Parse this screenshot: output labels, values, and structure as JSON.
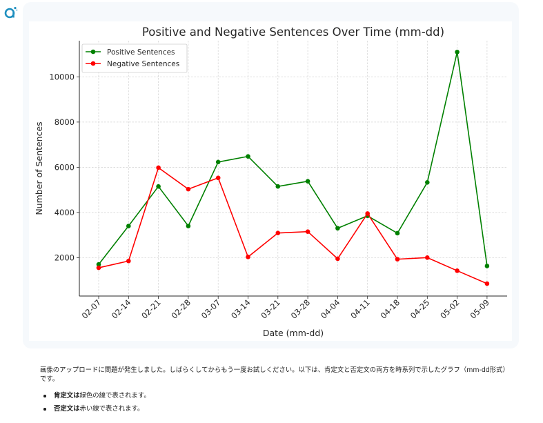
{
  "assistant": {
    "avatar_icon": "assistant-logo-icon",
    "brand_color": "#1e8fbf"
  },
  "message": {
    "paragraph": "画像のアップロードに問題が発生しました。しばらくしてからもう一度お試しください。以下は、肯定文と否定文の両方を時系列で示したグラフ（mm-dd形式）です。",
    "bullets": [
      {
        "strong": "肯定文は",
        "rest": "緑色の線で表されます。"
      },
      {
        "strong": "否定文は",
        "rest": "赤い線で表されます。"
      }
    ]
  },
  "chart_data": {
    "type": "line",
    "title": "Positive and Negative Sentences Over Time (mm-dd)",
    "xlabel": "Date (mm-dd)",
    "ylabel": "Number of Sentences",
    "categories": [
      "02-07",
      "02-14",
      "02-21",
      "02-28",
      "03-07",
      "03-14",
      "03-21",
      "03-28",
      "04-04",
      "04-11",
      "04-18",
      "04-25",
      "05-02",
      "05-09"
    ],
    "yticks": [
      2000,
      4000,
      6000,
      8000,
      10000
    ],
    "ylim": [
      300,
      11600
    ],
    "grid": true,
    "legend_position": "top-left",
    "series": [
      {
        "name": "Positive Sentences",
        "color": "#008000",
        "values": [
          1700,
          3400,
          5150,
          3400,
          6230,
          6480,
          5150,
          5380,
          3300,
          3850,
          3080,
          5330,
          11100,
          1630
        ]
      },
      {
        "name": "Negative Sentences",
        "color": "#ff0000",
        "values": [
          1550,
          1850,
          5980,
          5030,
          5530,
          2030,
          3090,
          3150,
          1950,
          3950,
          1930,
          2000,
          1420,
          850
        ]
      }
    ]
  }
}
